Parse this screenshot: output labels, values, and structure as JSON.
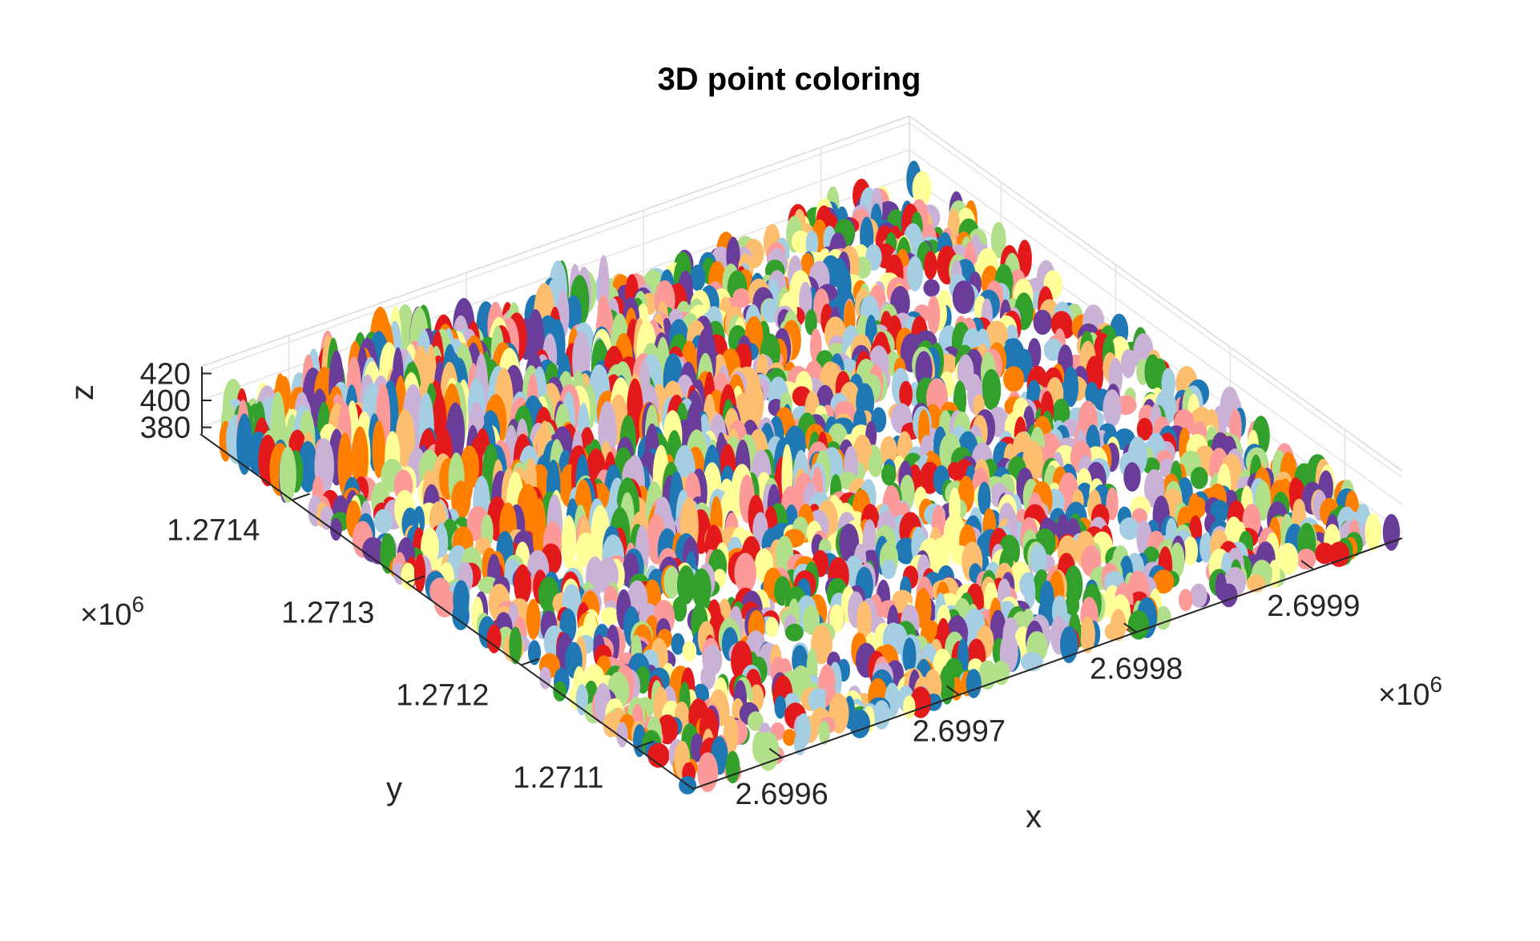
{
  "chart_data": {
    "type": "scatter",
    "title": "3D point coloring",
    "xlabel": "x",
    "ylabel": "y",
    "zlabel": "z",
    "x_ticks": [
      "2.6996",
      "2.6997",
      "2.6998",
      "2.6999"
    ],
    "x_tick_values": [
      2.6996,
      2.6997,
      2.6998,
      2.6999
    ],
    "x_multiplier": "×10",
    "x_exponent": "6",
    "xlim": [
      2.69955,
      2.69995
    ],
    "y_ticks": [
      "1.2711",
      "1.2712",
      "1.2713",
      "1.2714"
    ],
    "y_tick_values": [
      1.2711,
      1.2712,
      1.2713,
      1.2714
    ],
    "y_multiplier": "×10",
    "y_exponent": "6",
    "ylim": [
      1.27105,
      1.27148
    ],
    "z_ticks": [
      "380",
      "400",
      "420"
    ],
    "z_tick_values": [
      380,
      400,
      420
    ],
    "zlim": [
      375,
      425
    ],
    "grid": true,
    "legend": "none",
    "colormap": [
      "#1f78b4",
      "#a6cee3",
      "#33a02c",
      "#b2df8a",
      "#e31a1c",
      "#fb9a99",
      "#ff7f00",
      "#fdbf6f",
      "#6a3d9a",
      "#cab2d6",
      "#ffff99"
    ],
    "point_groups": "tree segments (individual trees) colored with a cycling qualitative palette"
  }
}
